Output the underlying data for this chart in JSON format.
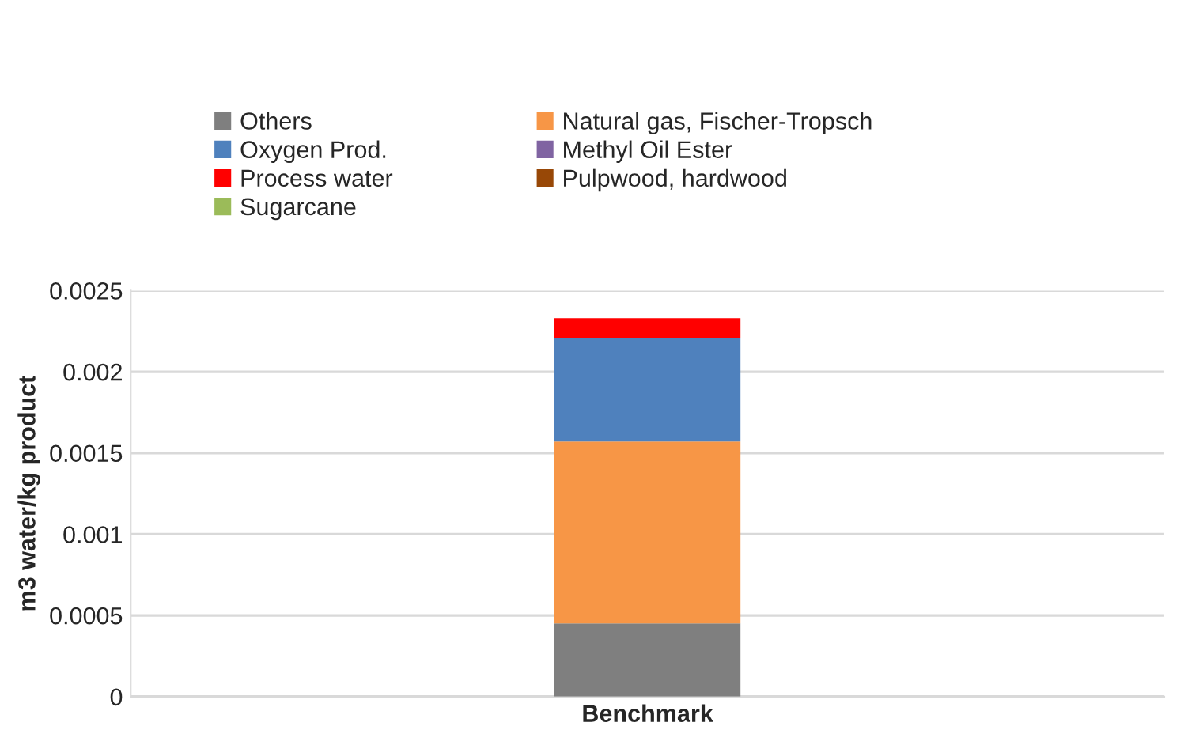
{
  "chart_data": {
    "type": "bar",
    "stacked": true,
    "ylabel": "m3 water/kg product",
    "categories": [
      "Benchmark"
    ],
    "series": [
      {
        "name": "Others",
        "color": "#7f7f7f",
        "values": [
          0.00045
        ]
      },
      {
        "name": "Natural gas, Fischer-Tropsch",
        "color": "#f79646",
        "values": [
          0.00112
        ]
      },
      {
        "name": "Oxygen Prod.",
        "color": "#4f81bd",
        "values": [
          0.00064
        ]
      },
      {
        "name": "Methyl Oil Ester",
        "color": "#8064a2",
        "values": [
          0
        ]
      },
      {
        "name": "Process water",
        "color": "#ff0000",
        "values": [
          0.00012
        ]
      },
      {
        "name": "Pulpwood, hardwood",
        "color": "#984807",
        "values": [
          0
        ]
      },
      {
        "name": "Sugarcane",
        "color": "#9bbb59",
        "values": [
          0
        ]
      }
    ],
    "ylim": [
      0,
      0.0025
    ],
    "yticks": [
      0,
      0.0005,
      0.001,
      0.0015,
      0.002,
      0.0025
    ],
    "grid": "y",
    "legend": "top"
  }
}
